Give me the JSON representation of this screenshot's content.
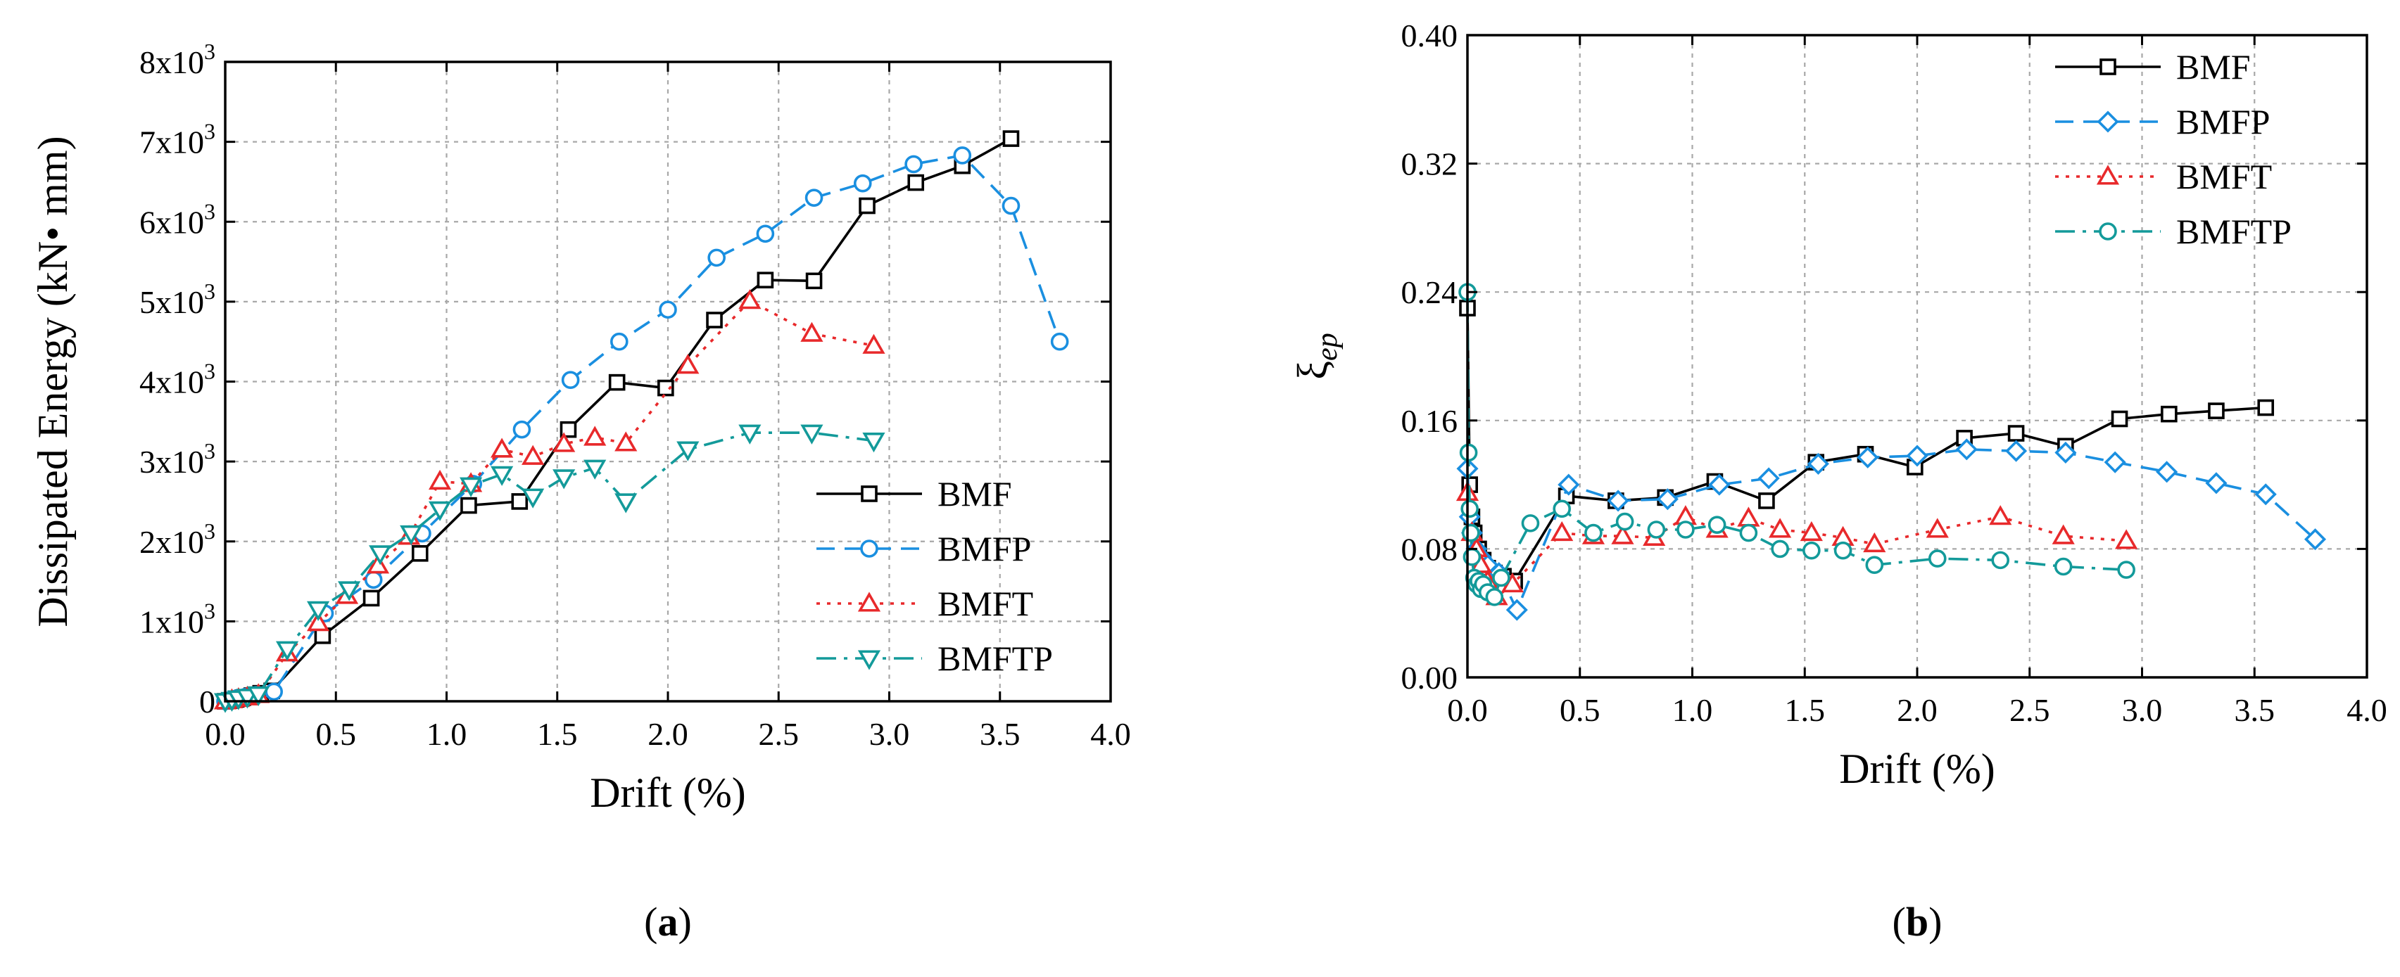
{
  "chart_data": [
    {
      "id": "a",
      "type": "line",
      "caption_open": "(",
      "caption": "a",
      "caption_close": ")",
      "xlabel": "Drift (%)",
      "ylabel": "Dissipated Energy (kN• mm)",
      "xlim": [
        0,
        4.0
      ],
      "ylim": [
        0,
        8000
      ],
      "xticks": [
        "0.0",
        "0.5",
        "1.0",
        "1.5",
        "2.0",
        "2.5",
        "3.0",
        "3.5",
        "4.0"
      ],
      "yticks": [
        {
          "value": 0,
          "base": "0",
          "exp": ""
        },
        {
          "value": 1000,
          "base": "1x10",
          "exp": "3"
        },
        {
          "value": 2000,
          "base": "2x10",
          "exp": "3"
        },
        {
          "value": 3000,
          "base": "3x10",
          "exp": "3"
        },
        {
          "value": 4000,
          "base": "4x10",
          "exp": "3"
        },
        {
          "value": 5000,
          "base": "5x10",
          "exp": "3"
        },
        {
          "value": 6000,
          "base": "6x10",
          "exp": "3"
        },
        {
          "value": 7000,
          "base": "7x10",
          "exp": "3"
        },
        {
          "value": 8000,
          "base": "8x10",
          "exp": "3"
        }
      ],
      "grid": true,
      "legend_position": "bottom-right",
      "series": [
        {
          "name": "BMF",
          "color": "#000000",
          "dash": "solid",
          "marker": "square",
          "x": [
            0.0,
            0.02,
            0.05,
            0.08,
            0.12,
            0.16,
            0.21,
            0.44,
            0.66,
            0.88,
            1.1,
            1.33,
            1.55,
            1.77,
            1.99,
            2.21,
            2.44,
            2.66,
            2.9,
            3.12,
            3.33,
            3.55
          ],
          "y": [
            0,
            10,
            25,
            45,
            70,
            100,
            130,
            820,
            1290,
            1850,
            2450,
            2500,
            3400,
            3990,
            3920,
            4770,
            5270,
            5260,
            6200,
            6490,
            6700,
            7040
          ]
        },
        {
          "name": "BMFP",
          "color": "#1a8fe0",
          "dash": "dashed",
          "marker": "circle",
          "x": [
            0.0,
            0.02,
            0.05,
            0.09,
            0.14,
            0.22,
            0.45,
            0.67,
            0.89,
            1.12,
            1.34,
            1.56,
            1.78,
            2.0,
            2.22,
            2.44,
            2.66,
            2.88,
            3.11,
            3.33,
            3.55,
            3.77
          ],
          "y": [
            0,
            15,
            35,
            55,
            80,
            120,
            1100,
            1520,
            2100,
            2720,
            3400,
            4020,
            4500,
            4900,
            5550,
            5850,
            6300,
            6480,
            6720,
            6830,
            6200,
            4500
          ]
        },
        {
          "name": "BMFT",
          "color": "#e8292b",
          "dash": "dotted",
          "marker": "triangle-up",
          "x": [
            0.0,
            0.03,
            0.06,
            0.1,
            0.15,
            0.28,
            0.42,
            0.55,
            0.69,
            0.83,
            0.97,
            1.11,
            1.25,
            1.39,
            1.53,
            1.67,
            1.81,
            2.09,
            2.37,
            2.65,
            2.93
          ],
          "y": [
            0,
            15,
            30,
            50,
            80,
            600,
            980,
            1320,
            1700,
            2060,
            2750,
            2720,
            3150,
            3060,
            3220,
            3300,
            3230,
            4200,
            5010,
            4600,
            4450
          ]
        },
        {
          "name": "BMFTP",
          "color": "#139a9a",
          "dash": "dashdot",
          "marker": "triangle-down",
          "x": [
            0.0,
            0.03,
            0.06,
            0.1,
            0.15,
            0.28,
            0.42,
            0.56,
            0.7,
            0.84,
            0.97,
            1.11,
            1.25,
            1.39,
            1.53,
            1.67,
            1.81,
            2.09,
            2.37,
            2.65,
            2.93
          ],
          "y": [
            0,
            15,
            35,
            55,
            85,
            650,
            1150,
            1400,
            1850,
            2100,
            2400,
            2700,
            2840,
            2560,
            2800,
            2920,
            2500,
            3150,
            3360,
            3360,
            3260
          ]
        }
      ]
    },
    {
      "id": "b",
      "type": "line",
      "caption_open": "(",
      "caption": "b",
      "caption_close": ")",
      "xlabel": "Drift (%)",
      "ylabel_symbol": "ξ",
      "ylabel_subscript": "ep",
      "xlim": [
        0,
        4.0
      ],
      "ylim": [
        0,
        0.4
      ],
      "xticks": [
        "0.0",
        "0.5",
        "1.0",
        "1.5",
        "2.0",
        "2.5",
        "3.0",
        "3.5",
        "4.0"
      ],
      "yticks": [
        "0.00",
        "0.08",
        "0.16",
        "0.24",
        "0.32",
        "0.40"
      ],
      "grid": true,
      "legend_position": "top-right",
      "series": [
        {
          "name": "BMF",
          "color": "#000000",
          "dash": "solid",
          "marker": "square",
          "x": [
            0.0,
            0.01,
            0.02,
            0.03,
            0.05,
            0.07,
            0.09,
            0.12,
            0.16,
            0.21,
            0.44,
            0.66,
            0.88,
            1.1,
            1.33,
            1.55,
            1.77,
            1.99,
            2.21,
            2.44,
            2.66,
            2.9,
            3.12,
            3.33,
            3.55
          ],
          "y": [
            0.23,
            0.12,
            0.1,
            0.09,
            0.08,
            0.073,
            0.068,
            0.065,
            0.063,
            0.06,
            0.113,
            0.11,
            0.112,
            0.122,
            0.11,
            0.134,
            0.139,
            0.131,
            0.149,
            0.152,
            0.144,
            0.161,
            0.164,
            0.166,
            0.168
          ]
        },
        {
          "name": "BMFP",
          "color": "#1a8fe0",
          "dash": "dashed",
          "marker": "diamond",
          "x": [
            0.0,
            0.01,
            0.02,
            0.04,
            0.06,
            0.09,
            0.14,
            0.22,
            0.45,
            0.67,
            0.89,
            1.12,
            1.34,
            1.56,
            1.78,
            2.0,
            2.22,
            2.44,
            2.66,
            2.88,
            3.11,
            3.33,
            3.55,
            3.77
          ],
          "y": [
            0.13,
            0.1,
            0.09,
            0.08,
            0.075,
            0.07,
            0.065,
            0.042,
            0.12,
            0.11,
            0.111,
            0.12,
            0.124,
            0.133,
            0.137,
            0.138,
            0.142,
            0.141,
            0.14,
            0.134,
            0.128,
            0.121,
            0.114,
            0.086
          ]
        },
        {
          "name": "BMFT",
          "color": "#e8292b",
          "dash": "dotted",
          "marker": "triangle-up",
          "x": [
            0.0,
            0.02,
            0.04,
            0.06,
            0.09,
            0.13,
            0.2,
            0.42,
            0.56,
            0.69,
            0.83,
            0.97,
            1.11,
            1.25,
            1.39,
            1.53,
            1.67,
            1.81,
            2.09,
            2.37,
            2.65,
            2.93
          ],
          "y": [
            0.115,
            0.09,
            0.08,
            0.07,
            0.06,
            0.05,
            0.058,
            0.09,
            0.088,
            0.088,
            0.087,
            0.1,
            0.092,
            0.099,
            0.092,
            0.09,
            0.087,
            0.083,
            0.092,
            0.1,
            0.088,
            0.085
          ]
        },
        {
          "name": "BMFTP",
          "color": "#139a9a",
          "dash": "dashdot",
          "marker": "circle",
          "x": [
            0.0,
            0.005,
            0.01,
            0.015,
            0.02,
            0.03,
            0.04,
            0.05,
            0.06,
            0.07,
            0.09,
            0.12,
            0.15,
            0.28,
            0.42,
            0.56,
            0.7,
            0.84,
            0.97,
            1.11,
            1.25,
            1.39,
            1.53,
            1.67,
            1.81,
            2.09,
            2.37,
            2.65,
            2.93
          ],
          "y": [
            0.24,
            0.14,
            0.105,
            0.09,
            0.075,
            0.062,
            0.058,
            0.06,
            0.055,
            0.058,
            0.053,
            0.05,
            0.062,
            0.096,
            0.105,
            0.09,
            0.097,
            0.092,
            0.092,
            0.095,
            0.09,
            0.08,
            0.079,
            0.079,
            0.07,
            0.074,
            0.073,
            0.069,
            0.067
          ]
        }
      ]
    }
  ]
}
